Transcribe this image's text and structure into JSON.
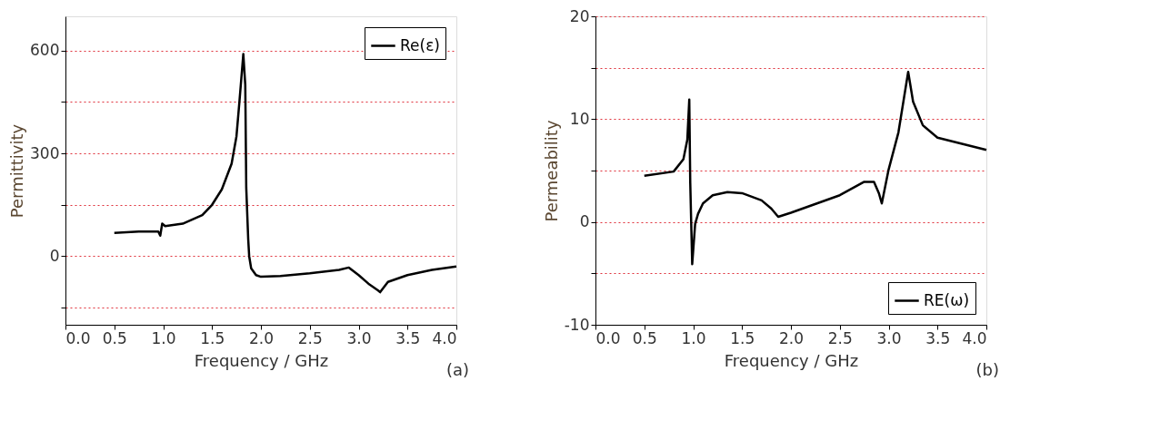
{
  "chart_data": [
    {
      "type": "line",
      "xlabel": "Frequency / GHz",
      "ylabel": "Permittivity",
      "annotations": [
        "(a)"
      ],
      "legend": "top right",
      "grid": "y",
      "marker": "none",
      "line_style": "solid",
      "xlim": [
        0,
        4
      ],
      "xticks": [
        {
          "value": 0,
          "label": "0.0"
        },
        0.5,
        {
          "value": 1,
          "label": "1.0"
        },
        1.5,
        {
          "value": 2,
          "label": "2.0"
        },
        2.5,
        {
          "value": 3,
          "label": "3.0"
        },
        3.5,
        {
          "value": 4,
          "label": "4.0"
        }
      ],
      "ylim": [
        -200,
        700
      ],
      "yticks": [
        {
          "value": -150,
          "label": null
        },
        0,
        {
          "value": 150,
          "label": null
        },
        300,
        {
          "value": 450,
          "label": null
        },
        600
      ],
      "series": [
        {
          "name": "Re(ε)",
          "color": "#000000",
          "x": [
            0.5,
            0.75,
            0.95,
            0.97,
            0.99,
            1.02,
            1.2,
            1.4,
            1.5,
            1.6,
            1.7,
            1.75,
            1.78,
            1.8,
            1.82,
            1.84,
            1.85,
            1.87,
            1.88,
            1.9,
            1.95,
            2.0,
            2.2,
            2.5,
            2.8,
            2.9,
            3.0,
            3.1,
            3.2,
            3.22,
            3.3,
            3.5,
            3.75,
            4.0
          ],
          "values": [
            68,
            72,
            72,
            60,
            95,
            88,
            95,
            120,
            150,
            195,
            270,
            350,
            450,
            520,
            590,
            500,
            200,
            50,
            0,
            -35,
            -55,
            -60,
            -58,
            -50,
            -40,
            -33,
            -55,
            -80,
            -100,
            -105,
            -75,
            -55,
            -40,
            -30
          ]
        }
      ]
    },
    {
      "type": "line",
      "xlabel": "Frequency / GHz",
      "ylabel": "Permeability",
      "annotations": [
        "(b)"
      ],
      "legend": "bottom right",
      "grid": "y",
      "marker": "none",
      "line_style": "solid",
      "xlim": [
        0,
        4
      ],
      "xticks": [
        {
          "value": 0,
          "label": "0.0"
        },
        0.5,
        {
          "value": 1,
          "label": "1.0"
        },
        1.5,
        {
          "value": 2,
          "label": "2.0"
        },
        2.5,
        {
          "value": 3,
          "label": "3.0"
        },
        3.5,
        {
          "value": 4,
          "label": "4.0"
        }
      ],
      "ylim": [
        -10,
        20
      ],
      "yticks": [
        -10,
        {
          "value": -5,
          "label": null
        },
        0,
        {
          "value": 5,
          "label": null
        },
        10,
        {
          "value": 15,
          "label": null
        },
        20
      ],
      "series": [
        {
          "name": "RE(ω)",
          "color": "#000000",
          "x": [
            0.5,
            0.8,
            0.9,
            0.94,
            0.96,
            0.97,
            0.99,
            1.02,
            1.05,
            1.1,
            1.2,
            1.35,
            1.5,
            1.7,
            1.8,
            1.87,
            2.0,
            2.5,
            2.75,
            2.85,
            2.9,
            2.93,
            3.0,
            3.1,
            3.2,
            3.25,
            3.35,
            3.5,
            3.75,
            4.0
          ],
          "values": [
            4.5,
            4.9,
            6.1,
            8,
            11.9,
            3.8,
            -4.1,
            -0.2,
            0.8,
            1.8,
            2.6,
            2.9,
            2.8,
            2.1,
            1.3,
            0.5,
            0.9,
            2.6,
            3.9,
            3.9,
            2.8,
            1.8,
            5.1,
            8.7,
            14.6,
            11.7,
            9.4,
            8.2,
            7.6,
            7.0
          ]
        }
      ]
    }
  ]
}
